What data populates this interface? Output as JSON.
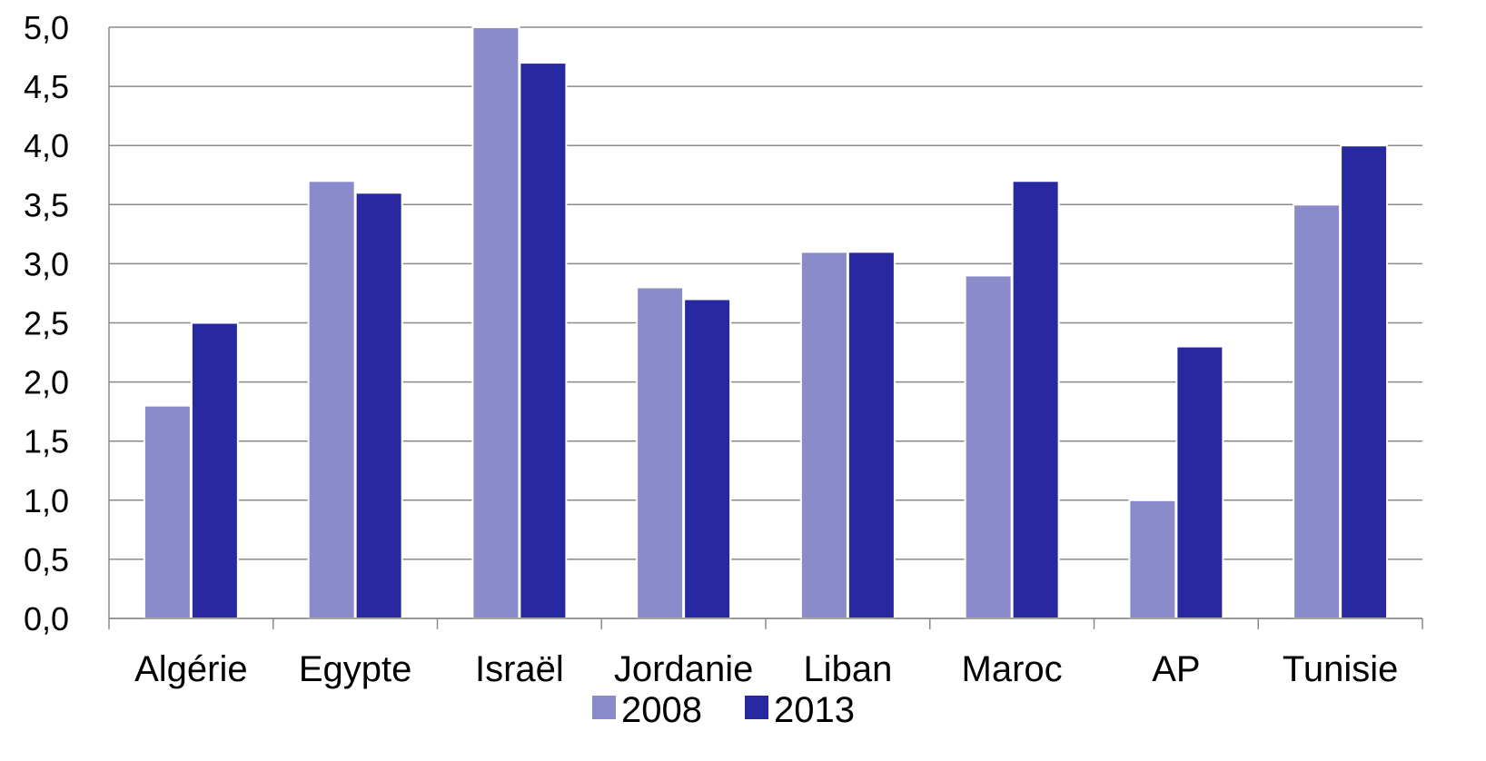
{
  "chart_data": {
    "type": "bar",
    "categories": [
      "Algérie",
      "Egypte",
      "Israël",
      "Jordanie",
      "Liban",
      "Maroc",
      "AP",
      "Tunisie"
    ],
    "series": [
      {
        "name": "2008",
        "color": "#8b8bcc",
        "values": [
          1.8,
          3.7,
          5.0,
          2.8,
          3.1,
          2.9,
          1.0,
          3.5
        ]
      },
      {
        "name": "2013",
        "color": "#2828a0",
        "values": [
          2.5,
          3.6,
          4.7,
          2.7,
          3.1,
          3.7,
          2.3,
          4.0
        ]
      }
    ],
    "ylim": [
      0,
      5
    ],
    "yticks": [
      "0,0",
      "0,5",
      "1,0",
      "1,5",
      "2,0",
      "2,5",
      "3,0",
      "3,5",
      "4,0",
      "4,5",
      "5,0"
    ],
    "grid": true,
    "legend_position": "bottom"
  }
}
